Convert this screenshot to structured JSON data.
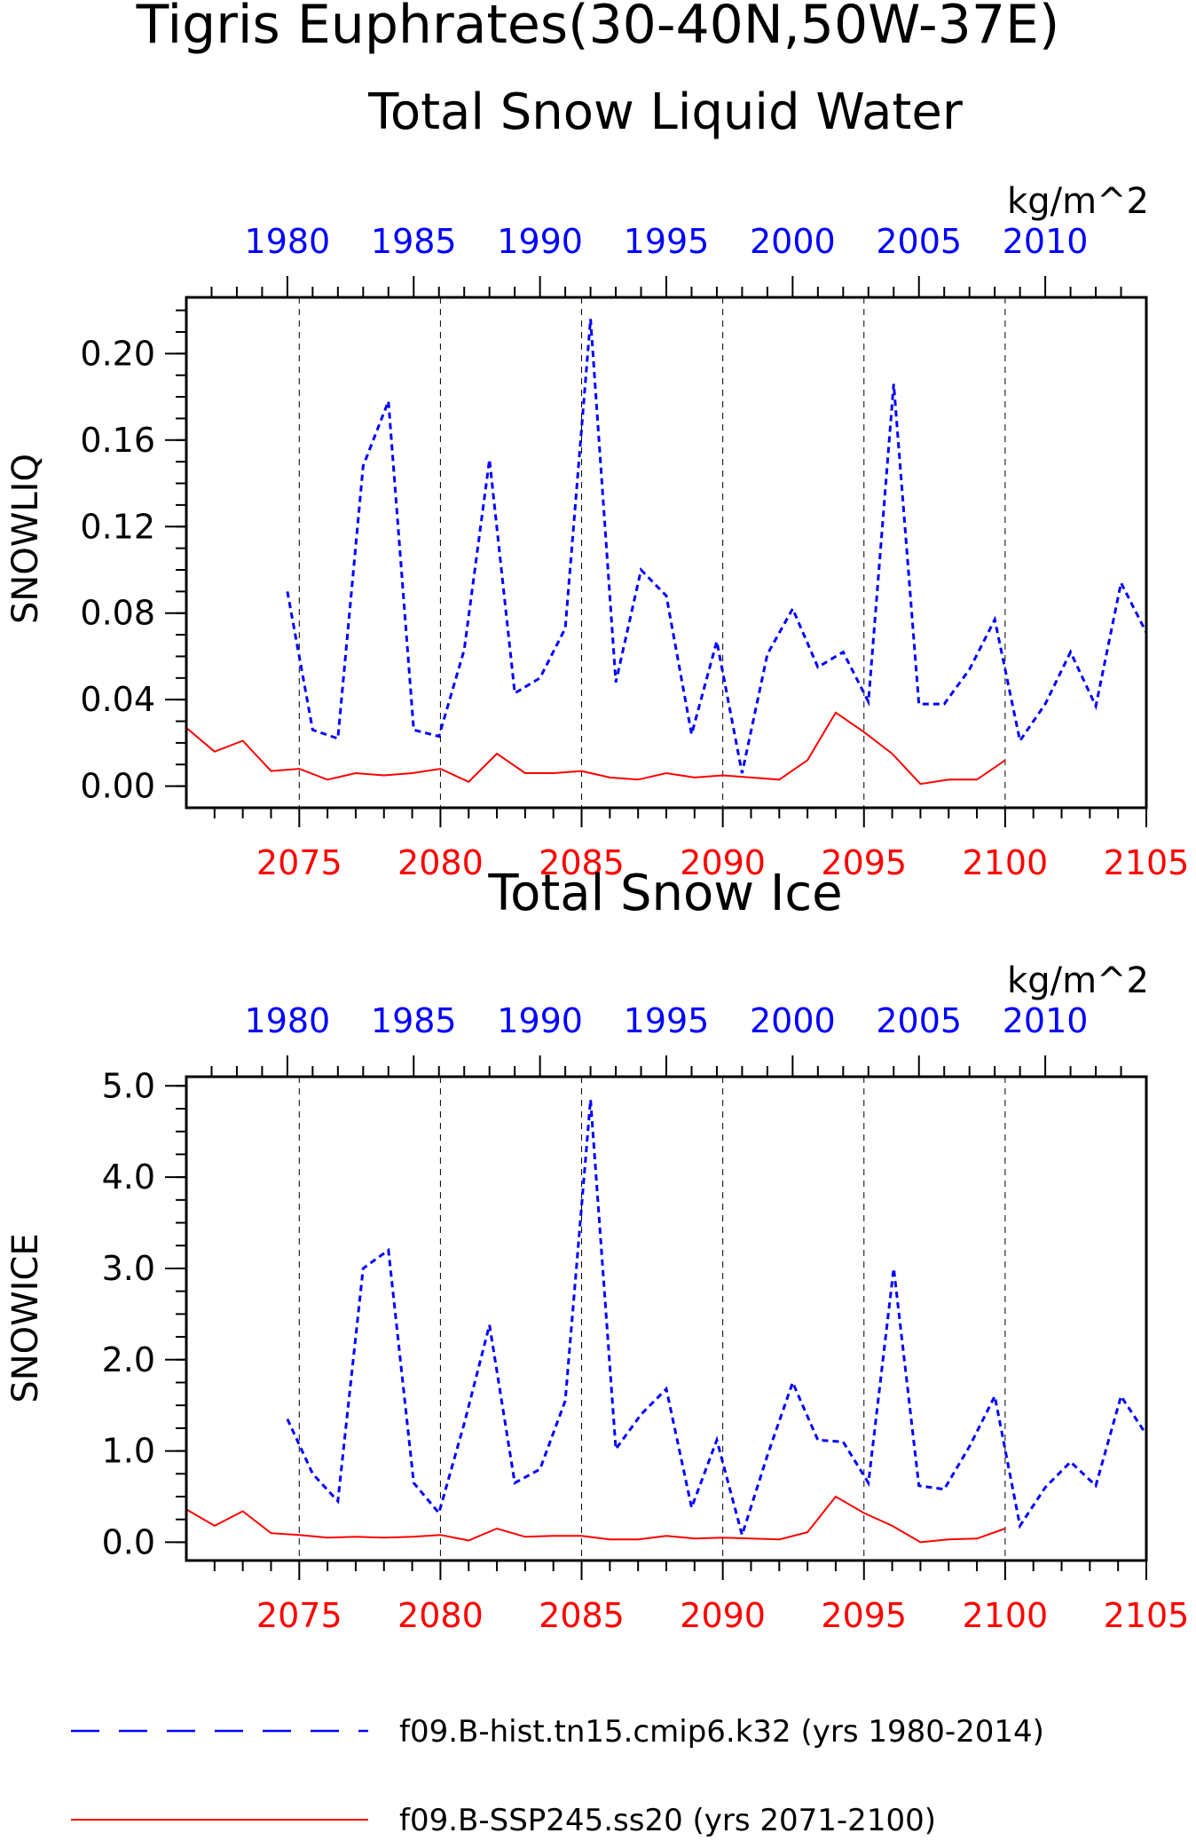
{
  "figure": {
    "title_line1": "Tigris Euphrates(30-40N,50W-37E)",
    "colors": {
      "hist": "#0000ff",
      "ssp": "#ff0000",
      "axis": "#000000",
      "grid": "#000000"
    }
  },
  "legend": [
    {
      "label": "f09.B-hist.tn15.cmip6.k32 (yrs 1980-2014)",
      "color": "#0000ff",
      "style": "dashed"
    },
    {
      "label": "f09.B-SSP245.ss20 (yrs 2071-2100)",
      "color": "#ff0000",
      "style": "solid"
    }
  ],
  "chart_data": [
    {
      "type": "line",
      "title": "Total Snow Liquid Water",
      "units": "kg/m^2",
      "ylabel": "SNOWLIQ",
      "ylim": [
        -0.01,
        0.226
      ],
      "yticks": [
        0.0,
        0.04,
        0.08,
        0.12,
        0.16,
        0.2
      ],
      "ytick_labels": [
        "0.00",
        "0.04",
        "0.08",
        "0.12",
        "0.16",
        "0.20"
      ],
      "top_axis": {
        "range": [
          1976,
          2014
        ],
        "ticks": [
          1980,
          1985,
          1990,
          1995,
          2000,
          2005,
          2010
        ]
      },
      "bottom_axis": {
        "range": [
          2071,
          2105
        ],
        "ticks": [
          2075,
          2080,
          2085,
          2090,
          2095,
          2100,
          2105
        ]
      },
      "grid": "vertical dashed lines at bottom-axis major ticks",
      "series": [
        {
          "color": "#0000ff",
          "style": "dashed",
          "axis": "top",
          "x": [
            1980,
            1981,
            1982,
            1983,
            1984,
            1985,
            1986,
            1987,
            1988,
            1989,
            1990,
            1991,
            1992,
            1993,
            1994,
            1995,
            1996,
            1997,
            1998,
            1999,
            2000,
            2001,
            2002,
            2003,
            2004,
            2005,
            2006,
            2007,
            2008,
            2009,
            2010,
            2011,
            2012,
            2013,
            2014
          ],
          "y": [
            0.09,
            0.026,
            0.022,
            0.148,
            0.178,
            0.026,
            0.023,
            0.063,
            0.151,
            0.043,
            0.05,
            0.073,
            0.216,
            0.048,
            0.1,
            0.088,
            0.024,
            0.067,
            0.006,
            0.061,
            0.082,
            0.055,
            0.062,
            0.039,
            0.186,
            0.038,
            0.038,
            0.054,
            0.077,
            0.021,
            0.038,
            0.062,
            0.037,
            0.094,
            0.071
          ]
        },
        {
          "color": "#ff0000",
          "style": "solid",
          "axis": "bottom",
          "x": [
            2071,
            2072,
            2073,
            2074,
            2075,
            2076,
            2077,
            2078,
            2079,
            2080,
            2081,
            2082,
            2083,
            2084,
            2085,
            2086,
            2087,
            2088,
            2089,
            2090,
            2091,
            2092,
            2093,
            2094,
            2095,
            2096,
            2097,
            2098,
            2099,
            2100
          ],
          "y": [
            0.027,
            0.016,
            0.021,
            0.007,
            0.008,
            0.003,
            0.006,
            0.005,
            0.006,
            0.008,
            0.002,
            0.015,
            0.006,
            0.006,
            0.007,
            0.004,
            0.003,
            0.006,
            0.004,
            0.005,
            0.004,
            0.003,
            0.012,
            0.034,
            0.025,
            0.015,
            0.001,
            0.003,
            0.003,
            0.012
          ]
        }
      ]
    },
    {
      "type": "line",
      "title": "Total Snow Ice",
      "units": "kg/m^2",
      "ylabel": "SNOWICE",
      "ylim": [
        -0.2,
        5.1
      ],
      "yticks": [
        0.0,
        1.0,
        2.0,
        3.0,
        4.0,
        5.0
      ],
      "ytick_labels": [
        "0.0",
        "1.0",
        "2.0",
        "3.0",
        "4.0",
        "5.0"
      ],
      "top_axis": {
        "range": [
          1976,
          2014
        ],
        "ticks": [
          1980,
          1985,
          1990,
          1995,
          2000,
          2005,
          2010
        ]
      },
      "bottom_axis": {
        "range": [
          2071,
          2105
        ],
        "ticks": [
          2075,
          2080,
          2085,
          2090,
          2095,
          2100,
          2105
        ]
      },
      "grid": "vertical dashed lines at bottom-axis major ticks",
      "series": [
        {
          "color": "#0000ff",
          "style": "dashed",
          "axis": "top",
          "x": [
            1980,
            1981,
            1982,
            1983,
            1984,
            1985,
            1986,
            1987,
            1988,
            1989,
            1990,
            1991,
            1992,
            1993,
            1994,
            1995,
            1996,
            1997,
            1998,
            1999,
            2000,
            2001,
            2002,
            2003,
            2004,
            2005,
            2006,
            2007,
            2008,
            2009,
            2010,
            2011,
            2012,
            2013,
            2014
          ],
          "y": [
            1.35,
            0.75,
            0.45,
            3.0,
            3.2,
            0.65,
            0.32,
            1.3,
            2.38,
            0.65,
            0.8,
            1.55,
            4.85,
            1.02,
            1.4,
            1.68,
            0.38,
            1.12,
            0.08,
            0.95,
            1.75,
            1.12,
            1.1,
            0.65,
            3.0,
            0.62,
            0.58,
            1.05,
            1.6,
            0.18,
            0.6,
            0.88,
            0.62,
            1.6,
            1.18
          ]
        },
        {
          "color": "#ff0000",
          "style": "solid",
          "axis": "bottom",
          "x": [
            2071,
            2072,
            2073,
            2074,
            2075,
            2076,
            2077,
            2078,
            2079,
            2080,
            2081,
            2082,
            2083,
            2084,
            2085,
            2086,
            2087,
            2088,
            2089,
            2090,
            2091,
            2092,
            2093,
            2094,
            2095,
            2096,
            2097,
            2098,
            2099,
            2100
          ],
          "y": [
            0.36,
            0.18,
            0.34,
            0.1,
            0.08,
            0.05,
            0.06,
            0.05,
            0.06,
            0.08,
            0.02,
            0.15,
            0.06,
            0.07,
            0.07,
            0.03,
            0.03,
            0.07,
            0.04,
            0.05,
            0.04,
            0.03,
            0.11,
            0.5,
            0.32,
            0.18,
            0.0,
            0.03,
            0.04,
            0.15
          ]
        }
      ]
    }
  ]
}
